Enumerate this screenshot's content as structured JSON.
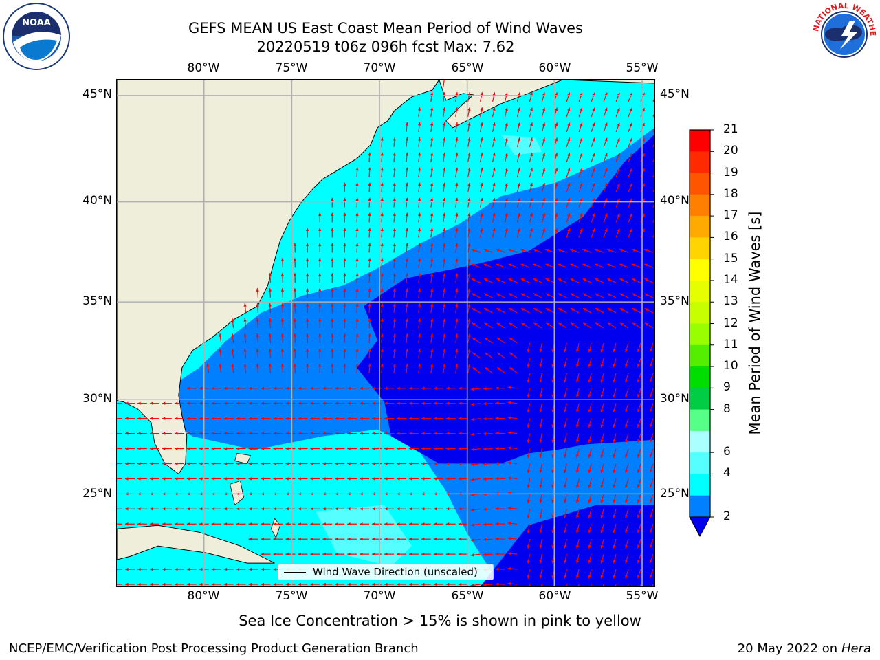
{
  "header": {
    "title_line1": "GEFS MEAN US East Coast Mean Period of Wind Waves",
    "title_line2": "20220519 t06z 096h fcst   Max: 7.62"
  },
  "logos": {
    "left": {
      "text": "NOAA",
      "ring_text": "NATIONAL OCEANIC AND ATMOSPHERIC ADMINISTRATION · U.S. DEPARTMENT OF COMMERCE"
    },
    "right": {
      "ring_text": "NATIONAL WEATHER SERVICE"
    }
  },
  "map": {
    "lon_labels": [
      "80°W",
      "75°W",
      "70°W",
      "65°W",
      "60°W",
      "55°W"
    ],
    "lat_labels": [
      "45°N",
      "40°N",
      "35°N",
      "30°N",
      "25°N"
    ],
    "legend": "Wind Wave Direction (unscaled)"
  },
  "colorbar": {
    "label": "Mean Period of Wind Waves [s]",
    "ticks": [
      "21",
      "20",
      "19",
      "18",
      "17",
      "16",
      "15",
      "14",
      "13",
      "12",
      "11",
      "10",
      "9",
      "8",
      "6",
      "4",
      "2"
    ],
    "colors": [
      "#ff0000",
      "#ff2a00",
      "#ff5500",
      "#ff8000",
      "#ffaa00",
      "#ffd400",
      "#ffff00",
      "#e6ff00",
      "#c8ff00",
      "#99ff00",
      "#55ee00",
      "#00dd00",
      "#00cc44",
      "#55ff88",
      "#aaffff",
      "#55ffff",
      "#00ffff",
      "#0080ff"
    ],
    "under_color": "#0000ee"
  },
  "colors": {
    "land": "#efeedb",
    "band_2_4": "#0080ff",
    "band_4_6": "#00ffff",
    "band_6_8": "#55ffff",
    "below_2": "#0000ee",
    "arrow": "#ff0000",
    "grid": "#b0b0b0"
  },
  "footer": {
    "note": "Sea Ice Concentration > 15% is shown in pink to yellow",
    "left": "NCEP/EMC/Verification Post Processing Product Generation Branch",
    "right_prefix": "20 May 2022 on",
    "right_host": "Hera"
  }
}
